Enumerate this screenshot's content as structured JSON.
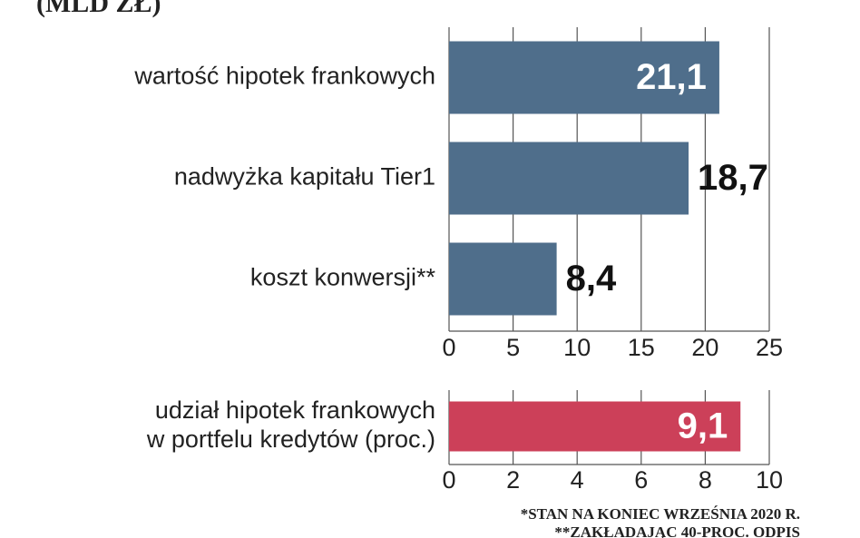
{
  "chart_data": [
    {
      "type": "bar",
      "orientation": "horizontal",
      "title": "(MLD ZŁ)",
      "categories": [
        "wartość hipotek frankowych",
        "nadwyżka kapitału Tier1",
        "koszt konwersji**"
      ],
      "values": [
        21.1,
        18.7,
        8.4
      ],
      "value_labels": [
        "21,1",
        "18,7",
        "8,4"
      ],
      "color": "#4f6e8b",
      "xlim": [
        0,
        25
      ],
      "xticks": [
        0,
        5,
        10,
        15,
        20,
        25
      ],
      "grid": true
    },
    {
      "type": "bar",
      "orientation": "horizontal",
      "categories": [
        [
          "udział hipotek frankowych",
          "w portfelu kredytów (proc.)"
        ]
      ],
      "values": [
        9.1
      ],
      "value_labels": [
        "9,1"
      ],
      "color": "#cc4059",
      "xlim": [
        0,
        10
      ],
      "xticks": [
        0,
        2,
        4,
        6,
        8,
        10
      ],
      "grid": true,
      "annotations": [
        "*STAN NA KONIEC WRZEŚNIA 2020 R.",
        "**ZAKŁADAJĄC 40-PROC. ODPIS"
      ]
    }
  ]
}
